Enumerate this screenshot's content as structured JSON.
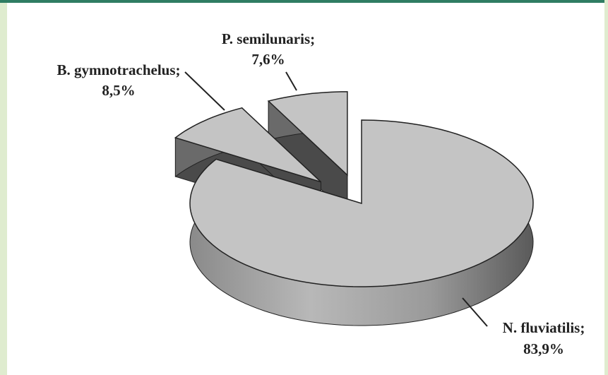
{
  "chart_data": {
    "type": "pie",
    "categories": [
      "N. fluviatilis;",
      "B. gymnotrachelus;",
      "P. semilunaris;"
    ],
    "values": [
      83.9,
      8.5,
      7.6
    ],
    "value_labels": [
      "83,9%",
      "8,5%",
      "7,6%"
    ],
    "color": "#c4c4c4"
  }
}
